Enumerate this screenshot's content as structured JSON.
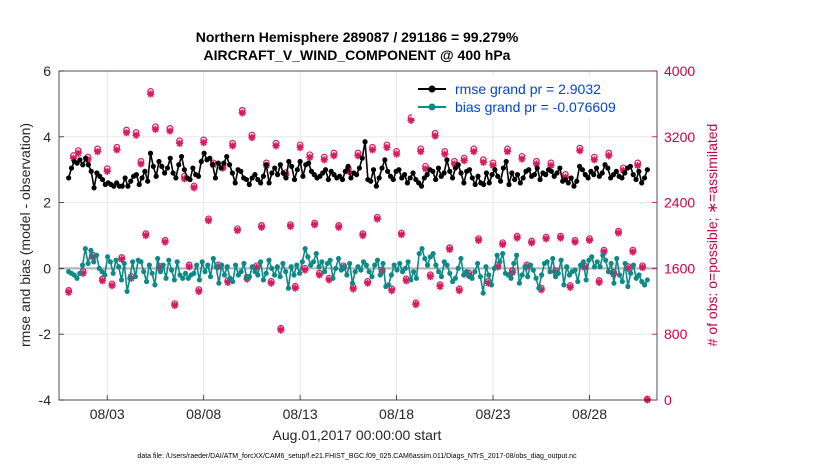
{
  "chart_data": {
    "type": "line",
    "title_line1": "Northern Hemisphere 289087 / 291186 = 99.279%",
    "title_line2": "AIRCRAFT_V_WIND_COMPONENT @ 400 hPa",
    "ylabel_left": "rmse and bias (model - observation)",
    "ylabel_right": "# of obs: o=possible; ∗=assimilated",
    "xlabel": "Aug.01,2017 00:00:00 start",
    "footer": "data file: /Users/raeder/DAI/ATM_forcXX/CAM6_setup/f.e21.FHIST_BGC.f09_025.CAM6assim.011/Diags_NTrS_2017-08/obs_diag_output.nc",
    "x_range": [
      0.5,
      31.5
    ],
    "ylim_left": [
      -4,
      6
    ],
    "ylim_right": [
      0,
      4000
    ],
    "x_ticks": [
      {
        "pos": 3,
        "label": "08/03"
      },
      {
        "pos": 8,
        "label": "08/08"
      },
      {
        "pos": 13,
        "label": "08/13"
      },
      {
        "pos": 18,
        "label": "08/18"
      },
      {
        "pos": 23,
        "label": "08/23"
      },
      {
        "pos": 28,
        "label": "08/28"
      }
    ],
    "y_ticks_left": [
      "-4",
      "-2",
      "0",
      "2",
      "4",
      "6"
    ],
    "y_ticks_right": [
      "0",
      "800",
      "1600",
      "2400",
      "3200",
      "4000"
    ],
    "grid": true,
    "legend_position": "top-right",
    "series": [
      {
        "name": "rmse grand pr = 2.9032",
        "color": "#000000",
        "axis": "left",
        "values": [
          2.75,
          3.05,
          3.25,
          3.2,
          3.3,
          3.15,
          3.35,
          3.15,
          2.95,
          2.45,
          2.9,
          2.8,
          2.7,
          2.55,
          2.6,
          2.55,
          2.5,
          2.6,
          2.5,
          2.5,
          2.75,
          2.5,
          2.65,
          2.8,
          2.85,
          2.55,
          2.75,
          2.95,
          2.65,
          3.5,
          3.1,
          2.8,
          3.25,
          3.1,
          2.9,
          3.05,
          3.35,
          2.9,
          2.75,
          3.15,
          3.4,
          3.0,
          2.75,
          2.7,
          3.05,
          2.85,
          2.8,
          3.25,
          3.5,
          3.3,
          3.35,
          3.15,
          2.75,
          3.2,
          3.05,
          3.2,
          3.4,
          3.15,
          2.9,
          2.6,
          3.0,
          2.95,
          2.75,
          2.7,
          2.55,
          2.75,
          2.85,
          2.7,
          2.6,
          2.8,
          3.15,
          2.6,
          2.9,
          3.05,
          2.85,
          3.15,
          2.9,
          2.75,
          3.25,
          3.1,
          2.7,
          3.0,
          3.25,
          2.8,
          3.15,
          3.2,
          2.95,
          2.85,
          2.75,
          2.8,
          2.9,
          3.0,
          2.7,
          2.95,
          2.85,
          2.75,
          2.8,
          2.7,
          2.95,
          3.1,
          2.75,
          2.9,
          2.85,
          3.05,
          3.35,
          3.85,
          2.7,
          2.65,
          3.0,
          2.5,
          2.75,
          3.05,
          3.3,
          2.95,
          2.8,
          2.7,
          2.95,
          3.0,
          2.75,
          2.85,
          2.6,
          2.75,
          2.9,
          2.7,
          2.6,
          2.5,
          2.75,
          2.85,
          3.0,
          2.95,
          2.7,
          3.05,
          2.8,
          2.9,
          3.3,
          2.95,
          2.75,
          3.05,
          3.15,
          2.9,
          2.6,
          2.95,
          3.0,
          2.75,
          2.55,
          2.8,
          2.6,
          2.55,
          2.9,
          2.6,
          2.85,
          3.0,
          2.8,
          2.65,
          3.05,
          3.25,
          2.55,
          2.9,
          2.7,
          2.85,
          2.6,
          2.75,
          2.95,
          3.0,
          2.8,
          2.85,
          3.05,
          2.7,
          2.9,
          2.85,
          3.0,
          2.95,
          2.8,
          2.9,
          3.05,
          2.65,
          2.7,
          2.6,
          2.75,
          2.5,
          2.65,
          3.1,
          3.0,
          2.85,
          2.75,
          2.95,
          2.85,
          3.05,
          2.8,
          2.9,
          3.15,
          3.05,
          2.75,
          2.85,
          2.95,
          2.8,
          2.75,
          2.9,
          3.05,
          3.1,
          2.85,
          2.7,
          2.95,
          2.6,
          2.75,
          3.0
        ]
      },
      {
        "name": "bias grand pr = -0.076609",
        "color": "#0d8a88",
        "axis": "left",
        "values": [
          -0.1,
          -0.15,
          -0.2,
          -0.3,
          -0.15,
          0.1,
          0.6,
          0.15,
          0.55,
          0.2,
          0.4,
          0.0,
          -0.1,
          -0.2,
          0.35,
          0.2,
          -0.15,
          0.25,
          0.05,
          -0.35,
          0.15,
          -0.7,
          -0.3,
          0.2,
          -0.25,
          0.25,
          0.2,
          -0.1,
          -0.4,
          0.1,
          -0.15,
          -0.5,
          0.3,
          -0.1,
          0.1,
          -0.3,
          0.25,
          -0.05,
          -0.35,
          0.2,
          -0.2,
          -0.3,
          -0.15,
          -0.3,
          -0.2,
          -0.15,
          0.1,
          -0.35,
          0.2,
          -0.1,
          0.1,
          -0.25,
          0.3,
          0.05,
          -0.45,
          0.1,
          -0.2,
          0.05,
          -0.3,
          -0.4,
          0.1,
          -0.2,
          -0.1,
          0.15,
          -0.3,
          -0.25,
          0.05,
          -0.1,
          -0.2,
          0.2,
          -0.35,
          -0.15,
          0.25,
          0.0,
          -0.2,
          0.05,
          -0.25,
          0.15,
          -0.1,
          -0.6,
          0.05,
          -0.2,
          0.1,
          -0.15,
          0.2,
          0.6,
          0.35,
          0.1,
          0.2,
          0.45,
          0.05,
          0.2,
          -0.1,
          0.15,
          0.25,
          -0.3,
          0.0,
          0.3,
          -0.05,
          0.05,
          -0.2,
          0.15,
          -0.45,
          -0.1,
          0.05,
          -0.05,
          0.2,
          0.1,
          -0.1,
          -0.25,
          0.1,
          0.25,
          -0.2,
          0.15,
          -0.55,
          -0.5,
          -0.2,
          0.1,
          -0.05,
          0.15,
          -0.1,
          0.0,
          0.2,
          -0.35,
          -0.1,
          -0.3,
          0.45,
          0.6,
          0.3,
          0.1,
          0.35,
          0.45,
          0.1,
          -0.1,
          -0.25,
          0.2,
          0.1,
          -0.15,
          -0.4,
          -0.3,
          0.0,
          0.3,
          -0.2,
          -0.1,
          -0.25,
          -0.3,
          -0.1,
          0.15,
          -0.25,
          -0.75,
          0.05,
          -0.2,
          -0.5,
          0.0,
          0.4,
          0.2,
          0.45,
          -0.15,
          -0.2,
          -0.3,
          0.15,
          0.4,
          -0.45,
          -0.2,
          0.05,
          -0.25,
          0.1,
          -0.05,
          -0.3,
          -0.6,
          -0.2,
          0.15,
          0.2,
          -0.1,
          0.3,
          -0.25,
          -0.15,
          0.25,
          -0.5,
          0.05,
          -0.2,
          -0.1,
          -0.05,
          -0.4,
          0.1,
          0.2,
          -0.35,
          0.25,
          0.35,
          0.05,
          0.2,
          0.05,
          0.4,
          0.25,
          -0.1,
          0.15,
          -0.45,
          0.3,
          -0.2,
          -0.4,
          0.15,
          -0.55,
          -0.15,
          0.1,
          -0.3,
          -0.2,
          -0.4,
          -0.5,
          -0.35
        ]
      },
      {
        "name": "obs possible",
        "color": "#d81b60",
        "axis": "right",
        "marker": "circle",
        "values": [
          1320,
          2960,
          3020,
          1550,
          2940,
          1750,
          3040,
          1460,
          2800,
          1400,
          3060,
          1720,
          3270,
          1490,
          3240,
          2890,
          2010,
          3740,
          3310,
          1610,
          1930,
          3290,
          1160,
          3140,
          2710,
          1630,
          2590,
          1330,
          3150,
          2190,
          2870,
          1630,
          2840,
          1440,
          3110,
          2070,
          3510,
          1480,
          3210,
          1620,
          2110,
          2870,
          1430,
          3110,
          860,
          2750,
          2120,
          1370,
          3090,
          1590,
          2970,
          2140,
          1530,
          2940,
          1470,
          2990,
          2110,
          1620,
          2800,
          1360,
          2990,
          2010,
          1430,
          3060,
          2210,
          1570,
          3090,
          1340,
          3010,
          2020,
          1460,
          3420,
          1170,
          3040,
          2830,
          1510,
          3230,
          1390,
          3010,
          1840,
          2890,
          1340,
          2930,
          1530,
          3040,
          1950,
          2910,
          1430,
          2870,
          1630,
          1900,
          3040,
          1560,
          1980,
          2950,
          1630,
          1920,
          2890,
          1350,
          1970,
          2870,
          1560,
          1980,
          2730,
          1380,
          1930,
          3050,
          1620,
          1950,
          2940,
          1440,
          1810,
          2990,
          1540,
          2040,
          2810,
          1610,
          1810,
          2870,
          1620,
          0
        ]
      },
      {
        "name": "obs assimilated",
        "color": "#d81b60",
        "axis": "right",
        "marker": "asterisk",
        "values": [
          1310,
          2940,
          3000,
          1540,
          2920,
          1740,
          3020,
          1450,
          2780,
          1390,
          3040,
          1710,
          3250,
          1480,
          3220,
          2870,
          2000,
          3720,
          3290,
          1600,
          1920,
          3270,
          1150,
          3120,
          2690,
          1620,
          2580,
          1320,
          3130,
          2180,
          2860,
          1620,
          2820,
          1430,
          3090,
          2060,
          3490,
          1470,
          3190,
          1610,
          2100,
          2850,
          1420,
          3090,
          850,
          2730,
          2110,
          1360,
          3070,
          1580,
          2950,
          2130,
          1520,
          2920,
          1460,
          2970,
          2100,
          1610,
          2780,
          1350,
          2970,
          2000,
          1420,
          3040,
          2200,
          1560,
          3070,
          1330,
          2990,
          2010,
          1450,
          3400,
          1160,
          3020,
          2810,
          1500,
          3210,
          1380,
          2990,
          1830,
          2870,
          1330,
          2910,
          1520,
          3020,
          1940,
          2890,
          1420,
          2850,
          1620,
          1890,
          3020,
          1550,
          1970,
          2930,
          1620,
          1910,
          2870,
          1340,
          1960,
          2850,
          1550,
          1970,
          2710,
          1370,
          1920,
          3030,
          1610,
          1940,
          2920,
          1430,
          1800,
          2970,
          1530,
          2030,
          2790,
          1600,
          1800,
          2850,
          1610,
          0
        ]
      }
    ]
  }
}
